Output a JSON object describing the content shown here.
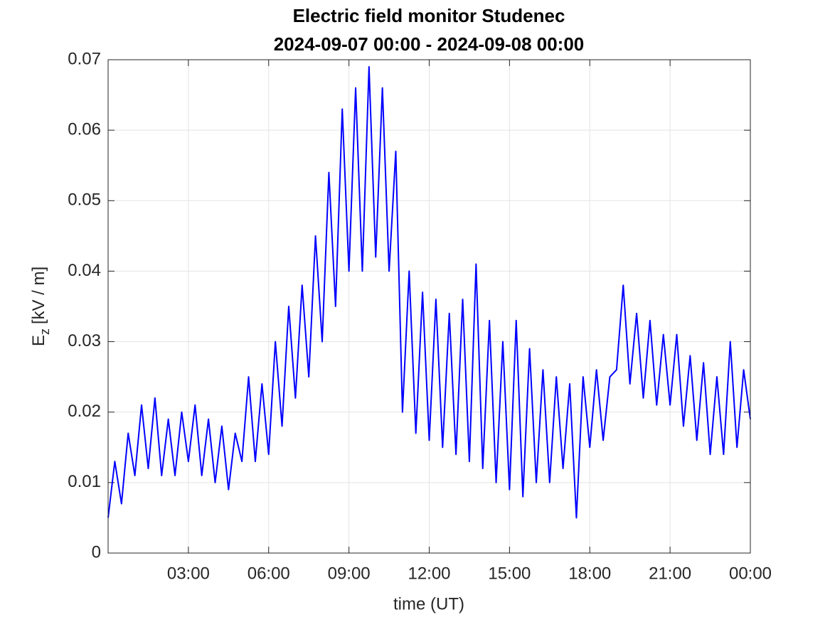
{
  "chart_data": {
    "type": "line",
    "title": [
      "Electric field monitor Studenec",
      "2024-09-07 00:00 - 2024-09-08 00:00"
    ],
    "xlabel": "time (UT)",
    "ylabel": {
      "main": "E",
      "sub": "z",
      "rest": "[kV / m]"
    },
    "xlim": [
      0,
      24
    ],
    "xticks": [
      {
        "value": 3,
        "label": "03:00"
      },
      {
        "value": 6,
        "label": "06:00"
      },
      {
        "value": 9,
        "label": "09:00"
      },
      {
        "value": 12,
        "label": "12:00"
      },
      {
        "value": 15,
        "label": "15:00"
      },
      {
        "value": 18,
        "label": "18:00"
      },
      {
        "value": 21,
        "label": "21:00"
      },
      {
        "value": 24,
        "label": "00:00"
      }
    ],
    "ylim": [
      0,
      0.07
    ],
    "yticks": [
      0,
      0.01,
      0.02,
      0.03,
      0.04,
      0.05,
      0.06,
      0.07
    ],
    "grid": true,
    "series": [
      {
        "color": "#0000ff",
        "x": [
          0,
          0.25,
          0.5,
          0.75,
          1,
          1.25,
          1.5,
          1.75,
          2,
          2.25,
          2.5,
          2.75,
          3,
          3.25,
          3.5,
          3.75,
          4,
          4.25,
          4.5,
          4.75,
          5,
          5.25,
          5.5,
          5.75,
          6,
          6.25,
          6.5,
          6.75,
          7,
          7.25,
          7.5,
          7.75,
          8,
          8.25,
          8.5,
          8.75,
          9,
          9.25,
          9.5,
          9.75,
          10,
          10.25,
          10.5,
          10.75,
          11,
          11.25,
          11.5,
          11.75,
          12,
          12.25,
          12.5,
          12.75,
          13,
          13.25,
          13.5,
          13.75,
          14,
          14.25,
          14.5,
          14.75,
          15,
          15.25,
          15.5,
          15.75,
          16,
          16.25,
          16.5,
          16.75,
          17,
          17.25,
          17.5,
          17.75,
          18,
          18.25,
          18.5,
          18.75,
          19,
          19.25,
          19.5,
          19.75,
          20,
          20.25,
          20.5,
          20.75,
          21,
          21.25,
          21.5,
          21.75,
          22,
          22.25,
          22.5,
          22.75,
          23,
          23.25,
          23.5,
          23.75,
          24
        ],
        "values": [
          0.005,
          0.013,
          0.007,
          0.017,
          0.011,
          0.021,
          0.012,
          0.022,
          0.011,
          0.019,
          0.011,
          0.02,
          0.013,
          0.021,
          0.011,
          0.019,
          0.01,
          0.018,
          0.009,
          0.017,
          0.013,
          0.025,
          0.013,
          0.024,
          0.014,
          0.03,
          0.018,
          0.035,
          0.022,
          0.038,
          0.025,
          0.045,
          0.03,
          0.054,
          0.035,
          0.063,
          0.04,
          0.066,
          0.04,
          0.069,
          0.042,
          0.066,
          0.04,
          0.057,
          0.02,
          0.04,
          0.017,
          0.037,
          0.016,
          0.036,
          0.015,
          0.034,
          0.014,
          0.036,
          0.013,
          0.041,
          0.012,
          0.033,
          0.01,
          0.03,
          0.009,
          0.033,
          0.008,
          0.029,
          0.01,
          0.026,
          0.01,
          0.025,
          0.012,
          0.024,
          0.005,
          0.025,
          0.015,
          0.026,
          0.016,
          0.025,
          0.026,
          0.038,
          0.024,
          0.034,
          0.022,
          0.033,
          0.021,
          0.031,
          0.021,
          0.031,
          0.018,
          0.028,
          0.016,
          0.027,
          0.014,
          0.025,
          0.014,
          0.03,
          0.015,
          0.026,
          0.019
        ]
      }
    ]
  }
}
